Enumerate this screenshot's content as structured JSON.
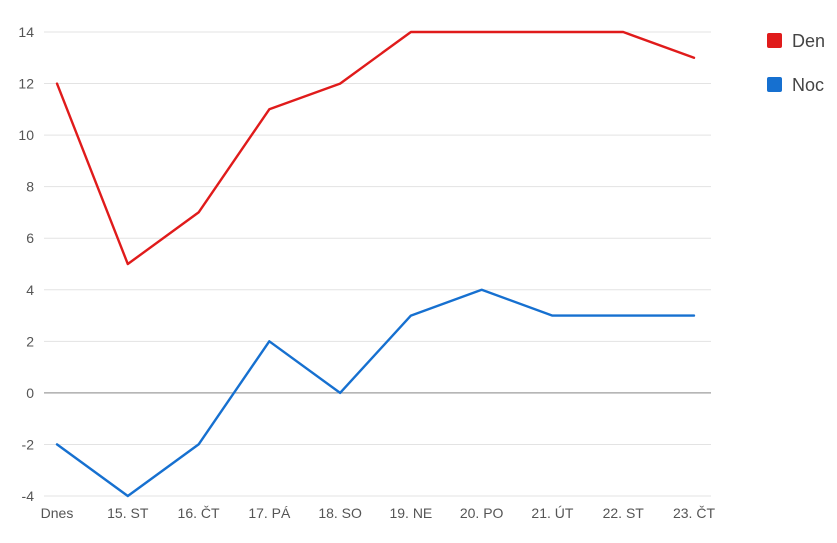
{
  "chart_data": {
    "type": "line",
    "title": "",
    "xlabel": "",
    "ylabel": "",
    "categories": [
      "Dnes",
      "15. ST",
      "16. ČT",
      "17. PÁ",
      "18. SO",
      "19. NE",
      "20. PO",
      "21. ÚT",
      "22. ST",
      "23. ČT"
    ],
    "ylim": [
      -4,
      14
    ],
    "yticks": [
      -4,
      -2,
      0,
      2,
      4,
      6,
      8,
      10,
      12,
      14
    ],
    "grid": true,
    "legend_position": "right",
    "series": [
      {
        "name": "Den",
        "color": "#e01b1b",
        "values": [
          12,
          5,
          7,
          11,
          12,
          14,
          14,
          14,
          14,
          13
        ]
      },
      {
        "name": "Noc",
        "color": "#1670d0",
        "values": [
          -2,
          -4,
          -2,
          2,
          0,
          3,
          4,
          3,
          3,
          3
        ]
      }
    ]
  }
}
